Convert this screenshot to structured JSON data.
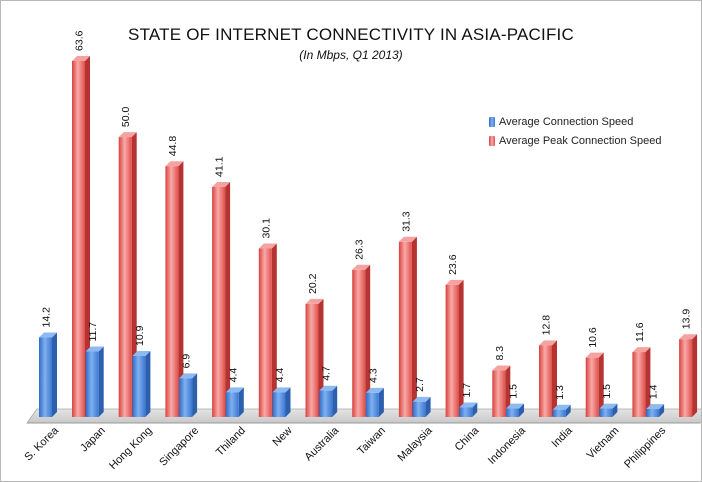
{
  "chart_data": {
    "type": "bar",
    "title": "STATE OF INTERNET CONNECTIVITY IN ASIA-PACIFIC",
    "subtitle": "(In Mbps, Q1 2013)",
    "categories": [
      "S. Korea",
      "Japan",
      "Hong Kong",
      "Singapore",
      "Thiland",
      "New",
      "Australia",
      "Taiwan",
      "Malaysia",
      "China",
      "Indonesia",
      "India",
      "Vietnam",
      "Philippines"
    ],
    "series": [
      {
        "name": "Average Connection Speed",
        "color": "#4a86d8",
        "values": [
          14.2,
          11.7,
          10.9,
          6.9,
          4.4,
          4.4,
          4.7,
          4.3,
          2.7,
          1.7,
          1.5,
          1.3,
          1.5,
          1.4
        ],
        "labels": [
          "14.2",
          "11.7",
          "10.9",
          "6.9",
          "4.4",
          "4.4",
          "4.7",
          "4.3",
          "2.7",
          "1.7",
          "1.5",
          "1.3",
          "1.5",
          "1.4"
        ]
      },
      {
        "name": "Average Peak Connection Speed",
        "color": "#e0504d",
        "values": [
          63.6,
          50.0,
          44.8,
          41.1,
          30.1,
          20.2,
          26.3,
          31.3,
          23.6,
          8.3,
          12.8,
          10.6,
          11.6,
          13.9
        ],
        "labels": [
          "63.6",
          "50.0",
          "44.8",
          "41.1",
          "30.1",
          "20.2",
          "26.3",
          "31.3",
          "23.6",
          "8.3",
          "12.8",
          "10.6",
          "11.6",
          "13.9"
        ]
      }
    ],
    "ylim": [
      0,
      63.6
    ],
    "grid": false,
    "legend_position": "top-right",
    "style": "3d"
  }
}
